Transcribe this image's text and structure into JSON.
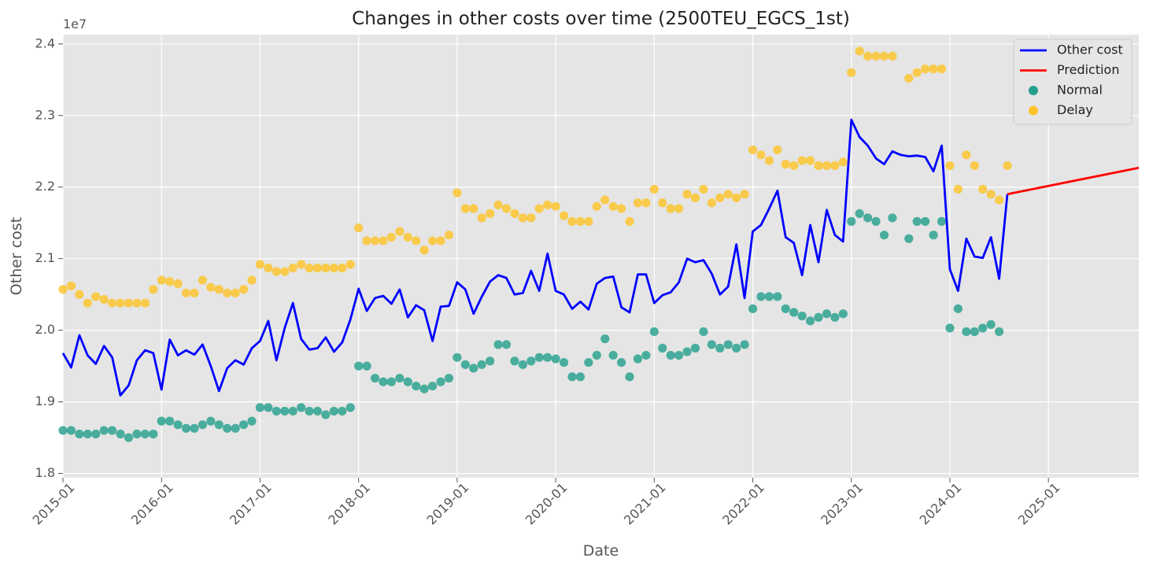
{
  "chart_data": {
    "type": "line",
    "title": "Changes in other costs over time (2500TEU_EGCS_1st)",
    "xlabel": "Date",
    "ylabel": "Other cost",
    "y_scale_exponent": "1e7",
    "xlim": [
      "2015-01",
      "2025-12"
    ],
    "ylim": [
      1.794,
      2.413
    ],
    "x_ticks": [
      "2015-01",
      "2016-01",
      "2017-01",
      "2018-01",
      "2019-01",
      "2020-01",
      "2021-01",
      "2022-01",
      "2023-01",
      "2024-01",
      "2025-01"
    ],
    "y_ticks": [
      "1.8",
      "1.9",
      "2.0",
      "2.1",
      "2.2",
      "2.3",
      "2.4"
    ],
    "grid": true,
    "legend_position": "top-right",
    "colors": {
      "background": "#e5e5e5",
      "grid": "#ffffff",
      "other_cost": "#0000ff",
      "prediction": "#ff0000",
      "normal": "#26a08c",
      "delay": "#fcc32a"
    },
    "legend": [
      {
        "label": "Other cost",
        "kind": "line",
        "color": "#0000ff"
      },
      {
        "label": "Prediction",
        "kind": "line",
        "color": "#ff0000"
      },
      {
        "label": "Normal",
        "kind": "dot",
        "color": "#26a08c"
      },
      {
        "label": "Delay",
        "kind": "dot",
        "color": "#fcc32a"
      }
    ],
    "series": [
      {
        "name": "Other cost",
        "start": "2015-01",
        "values": [
          1.968,
          1.948,
          1.993,
          1.965,
          1.953,
          1.978,
          1.962,
          1.909,
          1.923,
          1.958,
          1.972,
          1.968,
          1.917,
          1.987,
          1.965,
          1.972,
          1.966,
          1.98,
          1.95,
          1.915,
          1.947,
          1.958,
          1.952,
          1.975,
          1.985,
          2.013,
          1.958,
          2.003,
          2.038,
          1.988,
          1.973,
          1.975,
          1.99,
          1.97,
          1.983,
          2.015,
          2.058,
          2.027,
          2.045,
          2.048,
          2.037,
          2.057,
          2.018,
          2.035,
          2.028,
          1.985,
          2.033,
          2.034,
          2.067,
          2.057,
          2.023,
          2.047,
          2.068,
          2.077,
          2.073,
          2.05,
          2.052,
          2.083,
          2.055,
          2.107,
          2.055,
          2.05,
          2.03,
          2.04,
          2.029,
          2.065,
          2.073,
          2.075,
          2.032,
          2.025,
          2.078,
          2.078,
          2.038,
          2.049,
          2.053,
          2.067,
          2.1,
          2.095,
          2.098,
          2.079,
          2.05,
          2.061,
          2.12,
          2.045,
          2.138,
          2.147,
          2.17,
          2.195,
          2.13,
          2.122,
          2.077,
          2.147,
          2.095,
          2.168,
          2.133,
          2.124,
          2.294,
          2.27,
          2.258,
          2.24,
          2.232,
          2.25,
          2.245,
          2.243,
          2.244,
          2.242,
          2.222,
          2.258,
          2.085,
          2.055,
          2.128,
          2.103,
          2.101,
          2.13,
          2.072,
          2.19
        ]
      },
      {
        "name": "Prediction",
        "x": [
          "2024-08",
          "2025-12"
        ],
        "values": [
          2.19,
          2.227
        ]
      },
      {
        "name": "Normal",
        "start": "2015-01",
        "values": [
          1.86,
          1.86,
          1.855,
          1.855,
          1.855,
          1.86,
          1.86,
          1.855,
          1.85,
          1.855,
          1.855,
          1.855,
          1.873,
          1.873,
          1.868,
          1.863,
          1.863,
          1.868,
          1.873,
          1.868,
          1.863,
          1.863,
          1.868,
          1.873,
          1.892,
          1.892,
          1.887,
          1.887,
          1.887,
          1.892,
          1.887,
          1.887,
          1.882,
          1.887,
          1.887,
          1.892,
          1.95,
          1.95,
          1.933,
          1.928,
          1.928,
          1.933,
          1.928,
          1.922,
          1.918,
          1.922,
          1.928,
          1.933,
          1.962,
          1.952,
          1.947,
          1.952,
          1.957,
          1.98,
          1.98,
          1.957,
          1.952,
          1.957,
          1.962,
          1.962,
          1.96,
          1.955,
          1.935,
          1.935,
          1.955,
          1.965,
          1.988,
          1.965,
          1.955,
          1.935,
          1.96,
          1.965,
          1.998,
          1.975,
          1.965,
          1.965,
          1.97,
          1.975,
          1.998,
          1.98,
          1.975,
          1.98,
          1.975,
          1.98,
          2.03,
          2.047,
          2.047,
          2.047,
          2.03,
          2.025,
          2.02,
          2.013,
          2.018,
          2.023,
          2.018,
          2.023,
          2.152,
          2.163,
          2.157,
          2.152,
          2.133,
          2.157,
          null,
          2.128,
          2.152,
          2.152,
          2.133,
          2.152,
          2.003,
          2.03,
          1.998,
          1.998,
          2.003,
          2.008,
          1.998,
          null
        ]
      },
      {
        "name": "Delay",
        "start": "2015-01",
        "values": [
          2.057,
          2.062,
          2.05,
          2.038,
          2.047,
          2.043,
          2.038,
          2.038,
          2.038,
          2.038,
          2.038,
          2.057,
          2.07,
          2.068,
          2.065,
          2.052,
          2.052,
          2.07,
          2.06,
          2.057,
          2.052,
          2.052,
          2.057,
          2.07,
          2.092,
          2.087,
          2.082,
          2.082,
          2.087,
          2.092,
          2.087,
          2.087,
          2.087,
          2.087,
          2.087,
          2.092,
          2.143,
          2.125,
          2.125,
          2.125,
          2.13,
          2.138,
          2.13,
          2.125,
          2.112,
          2.125,
          2.125,
          2.133,
          2.192,
          2.17,
          2.17,
          2.157,
          2.163,
          2.175,
          2.17,
          2.163,
          2.157,
          2.157,
          2.17,
          2.175,
          2.173,
          2.16,
          2.152,
          2.152,
          2.152,
          2.173,
          2.182,
          2.173,
          2.17,
          2.152,
          2.178,
          2.178,
          2.197,
          2.178,
          2.17,
          2.17,
          2.19,
          2.185,
          2.197,
          2.178,
          2.185,
          2.19,
          2.185,
          2.19,
          2.252,
          2.245,
          2.237,
          2.252,
          2.232,
          2.23,
          2.237,
          2.237,
          2.23,
          2.23,
          2.23,
          2.235,
          2.36,
          2.39,
          2.383,
          2.383,
          2.383,
          2.383,
          null,
          2.352,
          2.36,
          2.365,
          2.365,
          2.365,
          2.23,
          2.197,
          2.245,
          2.23,
          2.197,
          2.19,
          2.182,
          2.23
        ]
      }
    ]
  }
}
